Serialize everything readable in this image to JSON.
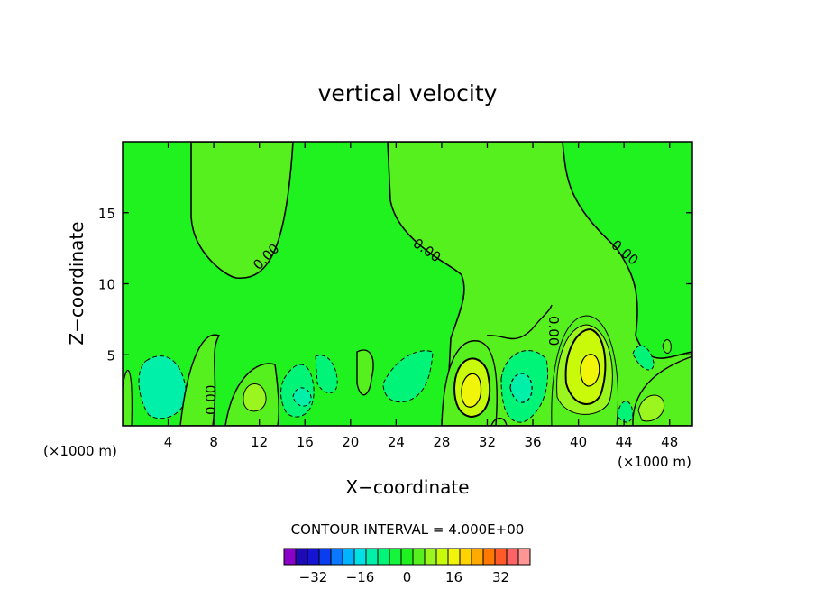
{
  "chart_data": {
    "type": "contour",
    "title": "vertical velocity",
    "xlabel": "X−coordinate",
    "ylabel": "Z−coordinate",
    "x_unit_left": "(×1000 m)",
    "x_unit_right": "(×1000 m)",
    "xlim": [
      0,
      50
    ],
    "ylim": [
      0,
      20
    ],
    "x_ticks": [
      4,
      8,
      12,
      16,
      20,
      24,
      28,
      32,
      36,
      40,
      44,
      48
    ],
    "y_ticks": [
      5,
      10,
      15
    ],
    "contour_labels": [
      "0.00",
      "0.00",
      "0.00",
      "0.00",
      "0.00"
    ],
    "contour_interval_text": "CONTOUR INTERVAL = 4.000E+00",
    "contour_interval": 4,
    "background_color": "#1ff21f",
    "features": [
      {
        "x": 3.8,
        "z": 2.7,
        "value": -8
      },
      {
        "x": 7.8,
        "z": 3.6,
        "value": 4
      },
      {
        "x": 11.5,
        "z": 2.3,
        "value": 8
      },
      {
        "x": 15.8,
        "z": 2.4,
        "value": -12
      },
      {
        "x": 19.2,
        "z": 2.6,
        "value": 4
      },
      {
        "x": 21.7,
        "z": 3.3,
        "value": 4
      },
      {
        "x": 25.4,
        "z": 3.5,
        "value": -8
      },
      {
        "x": 30.2,
        "z": 2.8,
        "value": 16
      },
      {
        "x": 34.7,
        "z": 2.7,
        "value": -12
      },
      {
        "x": 40.8,
        "z": 4.2,
        "value": 20
      },
      {
        "x": 45.8,
        "z": 1.6,
        "value": 8
      }
    ],
    "colorbar": {
      "colors": [
        "#8b00c8",
        "#1e0ab4",
        "#1414d2",
        "#0a3cf0",
        "#0a78ff",
        "#00b4ff",
        "#00e1e6",
        "#00f0aa",
        "#00f578",
        "#14f53c",
        "#1ff21f",
        "#55f01e",
        "#9bf51e",
        "#c8fa0a",
        "#f0f50a",
        "#ffd200",
        "#ffaa00",
        "#ff7800",
        "#ff5a28",
        "#ff6464",
        "#ff9696"
      ],
      "tick_labels": [
        "−32",
        "−16",
        "0",
        "16",
        "32"
      ],
      "tick_values": [
        -32,
        -16,
        0,
        16,
        32
      ],
      "range": [
        -42,
        42
      ]
    }
  }
}
